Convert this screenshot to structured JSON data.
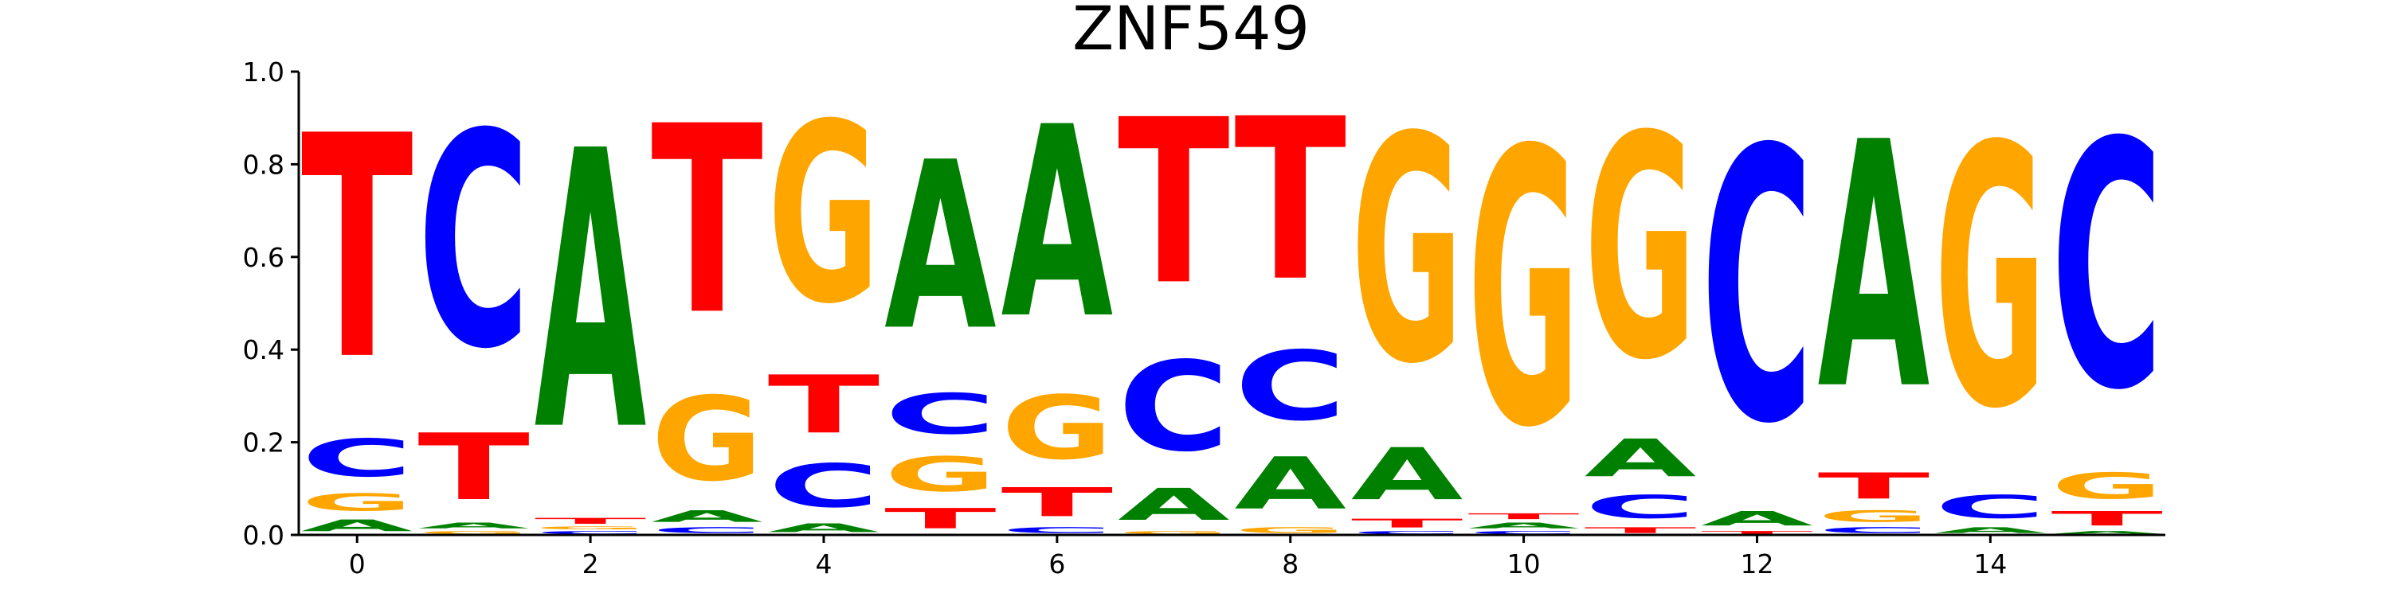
{
  "chart_data": {
    "type": "sequence-logo",
    "title": "ZNF549",
    "xlabel": "",
    "ylabel": "",
    "ylim": [
      0,
      1
    ],
    "xlim": [
      -0.5,
      15.5
    ],
    "x_ticks": [
      "0",
      "2",
      "4",
      "6",
      "8",
      "10",
      "12",
      "14"
    ],
    "y_ticks": [
      "0.0",
      "0.2",
      "0.4",
      "0.6",
      "0.8",
      "1.0"
    ],
    "grid": false,
    "colors": {
      "A": "#008000",
      "C": "#0000ff",
      "G": "#ffa500",
      "T": "#ff0000"
    },
    "positions": [
      {
        "pos": 0,
        "A": 0.04,
        "C": 0.13,
        "G": 0.06,
        "T": 0.77
      },
      {
        "pos": 1,
        "A": 0.02,
        "C": 0.74,
        "G": 0.01,
        "T": 0.23
      },
      {
        "pos": 2,
        "A": 0.96,
        "C": 0.01,
        "G": 0.01,
        "T": 0.02
      },
      {
        "pos": 3,
        "A": 0.04,
        "C": 0.02,
        "G": 0.29,
        "T": 0.65
      },
      {
        "pos": 4,
        "A": 0.03,
        "C": 0.15,
        "G": 0.62,
        "T": 0.2
      },
      {
        "pos": 5,
        "A": 0.58,
        "C": 0.14,
        "G": 0.12,
        "T": 0.07
      },
      {
        "pos": 6,
        "A": 0.66,
        "C": 0.02,
        "G": 0.22,
        "T": 0.1
      },
      {
        "pos": 7,
        "A": 0.11,
        "C": 0.31,
        "G": 0.01,
        "T": 0.57
      },
      {
        "pos": 8,
        "A": 0.18,
        "C": 0.24,
        "G": 0.02,
        "T": 0.56
      },
      {
        "pos": 9,
        "A": 0.18,
        "C": 0.01,
        "G": 0.78,
        "T": 0.03
      },
      {
        "pos": 10,
        "A": 0.02,
        "C": 0.01,
        "G": 0.95,
        "T": 0.02
      },
      {
        "pos": 11,
        "A": 0.13,
        "C": 0.08,
        "G": 0.77,
        "T": 0.02
      },
      {
        "pos": 12,
        "A": 0.05,
        "C": 0.94,
        "G": 0.0,
        "T": 0.01
      },
      {
        "pos": 13,
        "A": 0.85,
        "C": 0.02,
        "G": 0.04,
        "T": 0.09
      },
      {
        "pos": 14,
        "A": 0.02,
        "C": 0.08,
        "G": 0.9,
        "T": 0.0
      },
      {
        "pos": 15,
        "A": 0.01,
        "C": 0.85,
        "G": 0.09,
        "T": 0.05
      }
    ]
  }
}
